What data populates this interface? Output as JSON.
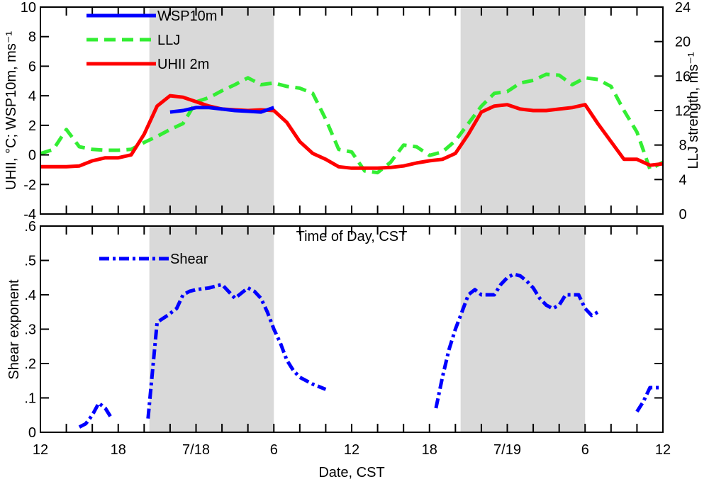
{
  "chart_data": [
    {
      "type": "line",
      "panel": "top",
      "title": "",
      "xlabel": "Time of Day, CST",
      "ylabel": "UHII, °C; WSP10m, ms⁻¹",
      "ylabel_right": "LLJ strength, ms⁻¹",
      "xlim": [
        12,
        60
      ],
      "ylim": [
        -4,
        10
      ],
      "ylim_right": [
        0,
        24
      ],
      "y_ticks": [
        "-4",
        "-2",
        "0",
        "2",
        "4",
        "6",
        "8",
        "10"
      ],
      "y_tick_values": [
        -4,
        -2,
        0,
        2,
        4,
        6,
        8,
        10
      ],
      "y_right_ticks": [
        "0",
        "4",
        "8",
        "12",
        "16",
        "20",
        "24"
      ],
      "y_right_tick_values": [
        0,
        4,
        8,
        12,
        16,
        20,
        24
      ],
      "shaded_intervals": [
        [
          20.4,
          30
        ],
        [
          44.4,
          54
        ]
      ],
      "legend_position": "top-left",
      "series": [
        {
          "name": "WSP10m",
          "axis": "left",
          "color": "#0000ff",
          "dash": "solid",
          "x": [
            22,
            23,
            24,
            25,
            26,
            27,
            28,
            29,
            30
          ],
          "y": [
            2.9,
            3.0,
            3.2,
            3.2,
            3.1,
            3.0,
            2.95,
            2.9,
            3.2
          ]
        },
        {
          "name": "LLJ",
          "axis": "right",
          "color": "#33ee33",
          "dash": "dashed",
          "x": [
            12,
            13,
            14,
            15,
            16,
            17,
            18,
            19,
            20,
            21,
            22,
            23,
            24,
            25,
            26,
            27,
            28,
            29,
            30,
            31,
            32,
            33,
            34,
            35,
            36,
            37,
            38,
            39,
            40,
            41,
            42,
            43,
            44,
            45,
            46,
            47,
            48,
            49,
            50,
            51,
            52,
            53,
            54,
            55,
            56,
            57,
            58,
            59,
            60
          ],
          "y": [
            7.0,
            7.5,
            9.8,
            7.8,
            7.5,
            7.4,
            7.4,
            7.5,
            8.3,
            9.0,
            9.8,
            10.5,
            13.0,
            13.5,
            14.3,
            15.0,
            15.8,
            15.0,
            15.2,
            14.8,
            14.6,
            14.0,
            11.0,
            7.5,
            7.2,
            5.0,
            4.8,
            6.0,
            8.0,
            7.8,
            6.8,
            7.2,
            8.5,
            10.5,
            12.5,
            14.0,
            14.2,
            15.2,
            15.5,
            16.2,
            16.1,
            15.0,
            15.8,
            15.6,
            14.8,
            12.0,
            9.5,
            5.2,
            6.0
          ],
          "y_left_equivalent": true
        },
        {
          "name": "UHII 2m",
          "axis": "left",
          "color": "#ff0000",
          "dash": "solid",
          "x": [
            12,
            13,
            14,
            15,
            16,
            17,
            18,
            19,
            20,
            21,
            22,
            23,
            24,
            25,
            26,
            27,
            28,
            29,
            30,
            31,
            32,
            33,
            34,
            35,
            36,
            37,
            38,
            39,
            40,
            41,
            42,
            43,
            44,
            45,
            46,
            47,
            48,
            49,
            50,
            51,
            52,
            53,
            54,
            55,
            56,
            57,
            58,
            59,
            60
          ],
          "y": [
            -0.8,
            -0.8,
            -0.8,
            -0.75,
            -0.4,
            -0.2,
            -0.2,
            0.0,
            1.4,
            3.3,
            4.0,
            3.9,
            3.6,
            3.3,
            3.1,
            3.05,
            3.0,
            3.05,
            3.0,
            2.2,
            0.9,
            0.1,
            -0.3,
            -0.8,
            -0.9,
            -0.9,
            -0.9,
            -0.85,
            -0.75,
            -0.55,
            -0.4,
            -0.3,
            0.1,
            1.4,
            2.9,
            3.3,
            3.4,
            3.1,
            3.0,
            3.0,
            3.1,
            3.2,
            3.4,
            2.1,
            0.9,
            -0.3,
            -0.3,
            -0.7,
            -0.6
          ]
        }
      ]
    },
    {
      "type": "line",
      "panel": "bottom",
      "title": "",
      "xlabel": "Date, CST",
      "ylabel": "Shear exponent",
      "xlim": [
        12,
        60
      ],
      "ylim": [
        0,
        0.6
      ],
      "y_ticks": [
        "0",
        ".1",
        ".2",
        ".3",
        ".4",
        ".5",
        ".6"
      ],
      "y_tick_values": [
        0,
        0.1,
        0.2,
        0.3,
        0.4,
        0.5,
        0.6
      ],
      "x_ticks": [
        "12",
        "18",
        "7/18",
        "6",
        "12",
        "18",
        "7/19",
        "6",
        "12"
      ],
      "x_tick_values": [
        12,
        18,
        24,
        30,
        36,
        42,
        48,
        54,
        60
      ],
      "shaded_intervals": [
        [
          20.4,
          30
        ],
        [
          44.4,
          54
        ]
      ],
      "legend_position": "top-left",
      "series": [
        {
          "name": "Shear",
          "color": "#0000ff",
          "dash": "dashdot",
          "segments": [
            {
              "x": [
                15,
                15.5,
                16,
                16.5,
                17,
                17.5
              ],
              "y": [
                0.015,
                0.025,
                0.05,
                0.085,
                0.07,
                0.04
              ]
            },
            {
              "x": [
                20.3,
                21,
                21.8,
                22.5,
                23,
                23.5,
                24,
                25,
                26,
                27,
                28,
                28.5,
                29,
                29.5,
                30,
                30.5,
                31,
                31.5,
                32,
                33,
                34
              ],
              "y": [
                0.04,
                0.32,
                0.34,
                0.36,
                0.4,
                0.41,
                0.415,
                0.42,
                0.43,
                0.39,
                0.42,
                0.41,
                0.39,
                0.35,
                0.3,
                0.26,
                0.21,
                0.18,
                0.16,
                0.14,
                0.125
              ]
            },
            {
              "x": [
                42.5,
                43,
                43.5,
                44,
                44.5,
                45,
                45.5,
                46,
                46.5,
                47,
                47.5,
                48,
                48.5,
                49,
                49.5,
                50,
                50.5,
                51,
                51.5,
                52,
                52.5,
                53,
                53.5,
                54,
                54.5,
                55
              ],
              "y": [
                0.07,
                0.16,
                0.24,
                0.3,
                0.35,
                0.4,
                0.415,
                0.4,
                0.4,
                0.4,
                0.43,
                0.45,
                0.46,
                0.455,
                0.44,
                0.42,
                0.39,
                0.37,
                0.36,
                0.37,
                0.4,
                0.4,
                0.4,
                0.36,
                0.34,
                0.35
              ]
            },
            {
              "x": [
                58,
                58.5,
                59,
                59.5,
                60
              ],
              "y": [
                0.06,
                0.09,
                0.13,
                0.13,
                0.13
              ]
            }
          ]
        }
      ]
    }
  ],
  "colors": {
    "shade": "#d9d9d9",
    "wsp": "#0000ff",
    "llj": "#33ee33",
    "uhii": "#ff0000",
    "shear": "#0000ff"
  }
}
